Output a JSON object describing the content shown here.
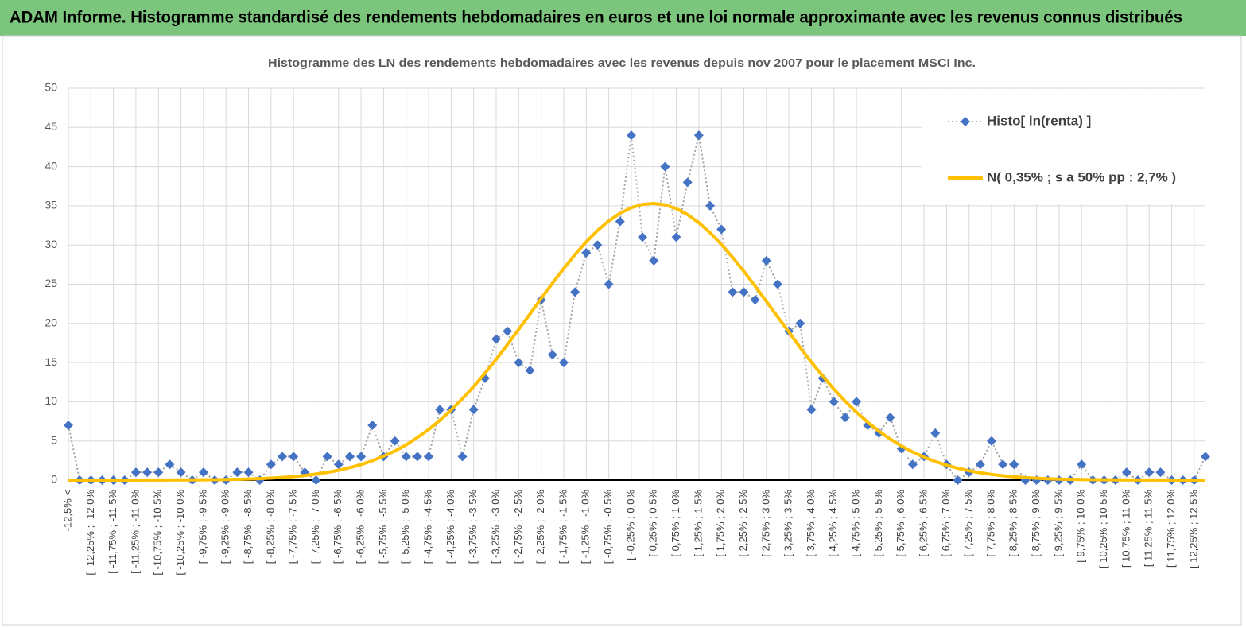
{
  "header": {
    "title": "ADAM Informe. Histogramme standardisé des rendements hebdomadaires en euros et une loi normale approximante avec les revenus connus distribués"
  },
  "chart_data": {
    "type": "line",
    "title": "Histogramme  des LN des rendements hebdomadaires avec les revenus depuis nov 2007 pour le placement MSCI Inc.",
    "categories": [
      "-12,5% <",
      null,
      "[ -12,25% ; -12,0%",
      null,
      "[ -11,75% ; -11,5%",
      null,
      "[ -11,25% ; -11,0%",
      null,
      "[ -10,75% ; -10,5%",
      null,
      "[ -10,25% ; -10,0%",
      null,
      "[ -9,75% ; -9,5%",
      null,
      "[ -9,25% ; -9,0%",
      null,
      "[ -8,75% ; -8,5%",
      null,
      "[ -8,25% ; -8,0%",
      null,
      "[ -7,75% ; -7,5%",
      null,
      "[ -7,25% ; -7,0%",
      null,
      "[ -6,75% ; -6,5%",
      null,
      "[ -6,25% ; -6,0%",
      null,
      "[ -5,75% ; -5,5%",
      null,
      "[ -5,25% ; -5,0%",
      null,
      "[ -4,75% ; -4,5%",
      null,
      "[ -4,25% ; -4,0%",
      null,
      "[ -3,75% ; -3,5%",
      null,
      "[ -3,25% ; -3,0%",
      null,
      "[ -2,75% ; -2,5%",
      null,
      "[ -2,25% ; -2,0%",
      null,
      "[ -1,75% ; -1,5%",
      null,
      "[ -1,25% ; -1,0%",
      null,
      "[ -0,75% ; -0,5%",
      null,
      "[ -0,25% ; 0,0%",
      null,
      "[ 0,25% ; 0,5%",
      null,
      "[ 0,75% ; 1,0%",
      null,
      "[ 1,25% ; 1,5%",
      null,
      "[ 1,75% ; 2,0%",
      null,
      "[ 2,25% ; 2,5%",
      null,
      "[ 2,75% ; 3,0%",
      null,
      "[ 3,25% ; 3,5%",
      null,
      "[ 3,75% ; 4,0%",
      null,
      "[ 4,25% ; 4,5%",
      null,
      "[ 4,75% ; 5,0%",
      null,
      "[ 5,25% ; 5,5%",
      null,
      "[ 5,75% ; 6,0%",
      null,
      "[ 6,25% ; 6,5%",
      null,
      "[ 6,75% ; 7,0%",
      null,
      "[ 7,25% ; 7,5%",
      null,
      "[ 7,75% ; 8,0%",
      null,
      "[ 8,25% ; 8,5%",
      null,
      "[ 8,75% ; 9,0%",
      null,
      "[ 9,25% ; 9,5%",
      null,
      "[ 9,75% ; 10,0%",
      null,
      "[ 10,25% ; 10,5%",
      null,
      "[ 10,75% ; 11,0%",
      null,
      "[ 11,25% ; 11,5%",
      null,
      "[ 11,75% ; 12,0%",
      null,
      "[ 12,25% ; 12,5%",
      null
    ],
    "series": [
      {
        "name": "Histo[ ln(renta) ]",
        "color": "#4472c4",
        "line_color": "#a5a5a5",
        "line_style": "dotted",
        "marker": "diamond",
        "values": [
          7,
          0,
          0,
          0,
          0,
          0,
          1,
          1,
          1,
          2,
          1,
          0,
          1,
          0,
          0,
          1,
          1,
          0,
          2,
          3,
          3,
          1,
          0,
          3,
          2,
          3,
          3,
          7,
          3,
          5,
          3,
          3,
          3,
          9,
          9,
          3,
          9,
          13,
          18,
          19,
          15,
          14,
          23,
          16,
          15,
          24,
          29,
          30,
          25,
          33,
          44,
          31,
          28,
          40,
          31,
          38,
          44,
          35,
          32,
          24,
          24,
          23,
          28,
          25,
          19,
          20,
          9,
          13,
          10,
          8,
          10,
          7,
          6,
          8,
          4,
          2,
          3,
          6,
          2,
          0,
          1,
          2,
          5,
          2,
          2,
          0,
          0,
          0,
          0,
          0,
          2,
          0,
          0,
          0,
          1,
          0,
          1,
          1,
          0,
          0,
          0,
          3
        ]
      },
      {
        "name": "N( 0,35% ; s a 50% pp : 2,7% )",
        "color": "#ffc000",
        "line_style": "solid",
        "marker": "none",
        "values": [
          0,
          0,
          0,
          0,
          0,
          0,
          0,
          0.01,
          0.01,
          0.01,
          0.02,
          0.03,
          0.04,
          0.05,
          0.07,
          0.1,
          0.14,
          0.19,
          0.26,
          0.34,
          0.45,
          0.59,
          0.77,
          0.99,
          1.25,
          1.59,
          1.98,
          2.47,
          3.05,
          3.72,
          4.5,
          5.44,
          6.45,
          7.64,
          8.95,
          10.39,
          11.95,
          13.63,
          15.42,
          17.3,
          19.24,
          21.2,
          23.19,
          25.13,
          27.01,
          28.78,
          30.41,
          31.85,
          33.07,
          34.05,
          34.76,
          35.18,
          35.3,
          35.12,
          34.64,
          33.88,
          32.85,
          31.57,
          30.08,
          28.43,
          26.64,
          24.75,
          22.8,
          20.84,
          18.91,
          16.92,
          15.05,
          13.29,
          11.61,
          10.07,
          8.67,
          7.39,
          6.25,
          5.24,
          4.36,
          3.59,
          2.93,
          2.37,
          1.91,
          1.52,
          1.2,
          0.94,
          0.73,
          0.56,
          0.43,
          0.32,
          0.24,
          0.18,
          0.13,
          0.1,
          0.07,
          0.05,
          0.04,
          0.03,
          0.02,
          0.01,
          0.01,
          0.01,
          0,
          0,
          0,
          0
        ]
      }
    ],
    "ylim": [
      0,
      50
    ],
    "yticks": [
      0,
      5,
      10,
      15,
      20,
      25,
      30,
      35,
      40,
      45,
      50
    ],
    "grid": true,
    "legend": "upper right"
  }
}
